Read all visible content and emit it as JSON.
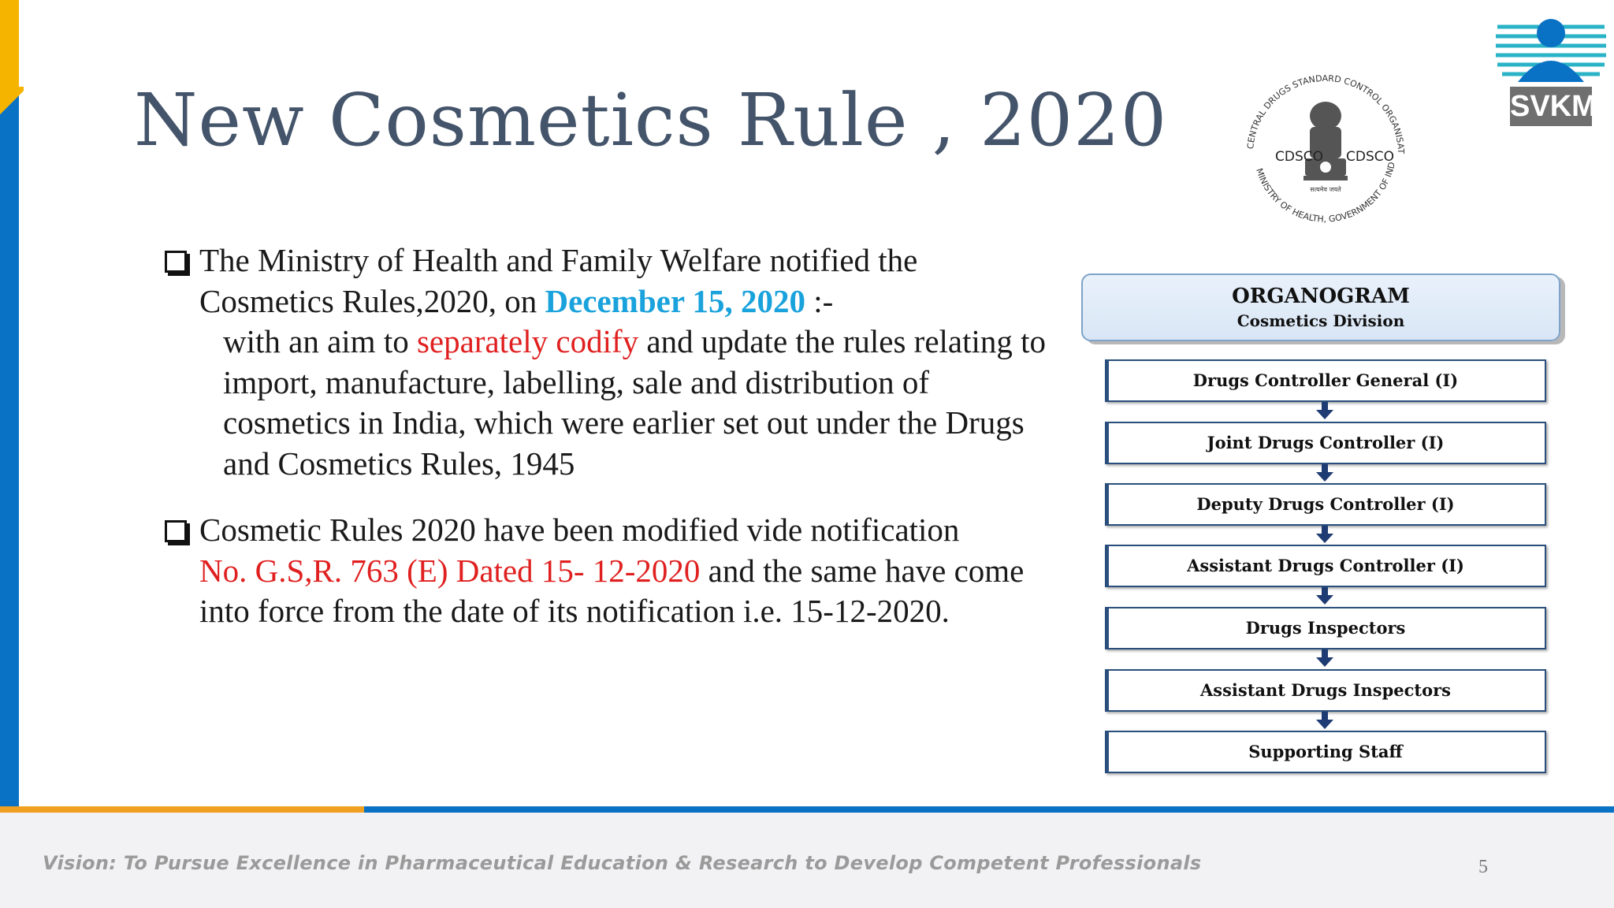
{
  "slide": {
    "title": "New Cosmetics Rule , 2020",
    "page_number": "5"
  },
  "bullets": {
    "b1_line1": "The Ministry of Health and Family Welfare notified the",
    "b1_line2_pre": "Cosmetics Rules,2020, on ",
    "b1_date": "December 15, 2020",
    "b1_line2_post": " :-",
    "b1_sub_pre": "with an aim to ",
    "b1_sub_red": "separately codify",
    "b1_sub_post": " and update the rules relating to import, manufacture, labelling, sale and distribution of cosmetics in India, which were earlier set out under the Drugs and Cosmetics Rules, 1945",
    "b2_line1": "Cosmetic Rules 2020 have been modified vide notification",
    "b2_red": "No. G.S,R. 763 (E) Dated 15- 12-2020",
    "b2_post": " and the same have come into force from the date of its notification i.e. 15-12-2020."
  },
  "organogram": {
    "title": "ORGANOGRAM",
    "subtitle": "Cosmetics Division",
    "levels": [
      "Drugs Controller General (I)",
      "Joint Drugs Controller (I)",
      "Deputy Drugs Controller (I)",
      "Assistant Drugs Controller (I)",
      "Drugs Inspectors",
      "Assistant Drugs Inspectors",
      "Supporting Staff"
    ]
  },
  "logos": {
    "cdsco_ring_text": "CENTRAL DRUGS STANDARD CONTROL ORGANISATION",
    "cdsco_ring_bottom": "MINISTRY OF HEALTH, GOVERNMENT OF INDIA",
    "cdsco_left": "CDSCO",
    "cdsco_right": "CDSCO",
    "cdsco_motto": "सत्यमेव जयते",
    "svkm": "SVKM"
  },
  "footer": {
    "vision": "Vision: To Pursue Excellence in Pharmaceutical Education & Research to Develop Competent Professionals"
  },
  "colors": {
    "accent_blue": "#0a72c4",
    "accent_yellow": "#f4b400",
    "date_blue": "#1aa2dc",
    "highlight_red": "#e02020",
    "title_slate": "#44546a"
  }
}
